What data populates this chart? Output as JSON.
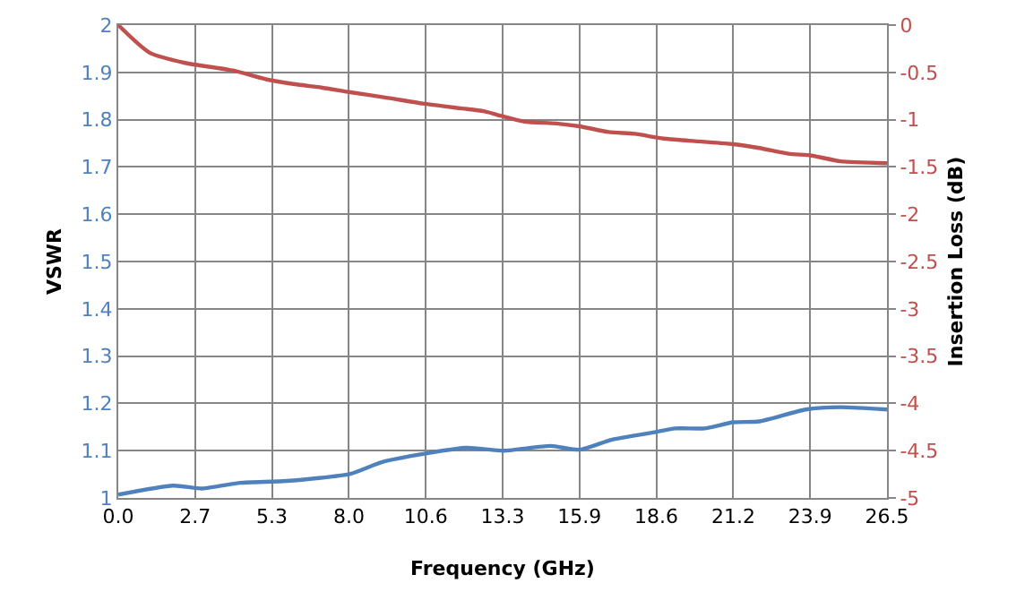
{
  "chart_data": {
    "type": "line",
    "xlabel": "Frequency (GHz)",
    "ylabel": "VSWR",
    "y2label": "Insertion Loss (dB)",
    "xlim": [
      0,
      26.5
    ],
    "xticks": [
      {
        "value": 0,
        "label": "0.0"
      },
      {
        "value": 2.65,
        "label": "2.7"
      },
      {
        "value": 5.3,
        "label": "5.3"
      },
      {
        "value": 7.95,
        "label": "8.0"
      },
      {
        "value": 10.6,
        "label": "10.6"
      },
      {
        "value": 13.25,
        "label": "13.3"
      },
      {
        "value": 15.9,
        "label": "15.9"
      },
      {
        "value": 18.55,
        "label": "18.6"
      },
      {
        "value": 21.2,
        "label": "21.2"
      },
      {
        "value": 23.85,
        "label": "23.9"
      },
      {
        "value": 26.5,
        "label": "26.5"
      }
    ],
    "ylim": [
      1,
      2
    ],
    "yticks": [
      1,
      1.1,
      1.2,
      1.3,
      1.4,
      1.5,
      1.6,
      1.7,
      1.8,
      1.9,
      2
    ],
    "y2lim": [
      -5,
      0
    ],
    "y2ticks": [
      -5,
      -4.5,
      -4,
      -3.5,
      -3,
      -2.5,
      -2,
      -1.5,
      -1,
      -0.5,
      0
    ],
    "grid": true,
    "marker": "none",
    "line_style": "solid",
    "series": [
      {
        "color": "#4f81bd",
        "axis": "y",
        "x": [
          0,
          1.9,
          2.9,
          4.2,
          5.8,
          8.0,
          9.1,
          10.6,
          12.0,
          13.3,
          14.9,
          15.9,
          17.0,
          18.4,
          19.2,
          20.2,
          21.2,
          22.1,
          23.7,
          24.9,
          26.5
        ],
        "values": [
          1.007,
          1.026,
          1.02,
          1.032,
          1.036,
          1.051,
          1.076,
          1.094,
          1.106,
          1.1,
          1.11,
          1.102,
          1.123,
          1.138,
          1.147,
          1.147,
          1.16,
          1.162,
          1.187,
          1.192,
          1.187
        ]
      },
      {
        "color": "#c0504d",
        "axis": "y2",
        "x": [
          0,
          1.07,
          2.3,
          3.95,
          5.2,
          6.2,
          7.0,
          8.0,
          9.3,
          10.5,
          11.8,
          12.6,
          13.2,
          14.0,
          15.1,
          15.9,
          16.9,
          17.8,
          18.8,
          20.0,
          21.2,
          22.1,
          23.1,
          23.9,
          24.9,
          26.5
        ],
        "values": [
          0,
          -0.29,
          -0.4,
          -0.48,
          -0.58,
          -0.63,
          -0.66,
          -0.71,
          -0.77,
          -0.83,
          -0.88,
          -0.91,
          -0.96,
          -1.02,
          -1.04,
          -1.07,
          -1.13,
          -1.15,
          -1.2,
          -1.23,
          -1.26,
          -1.3,
          -1.36,
          -1.38,
          -1.44,
          -1.46
        ]
      }
    ]
  }
}
